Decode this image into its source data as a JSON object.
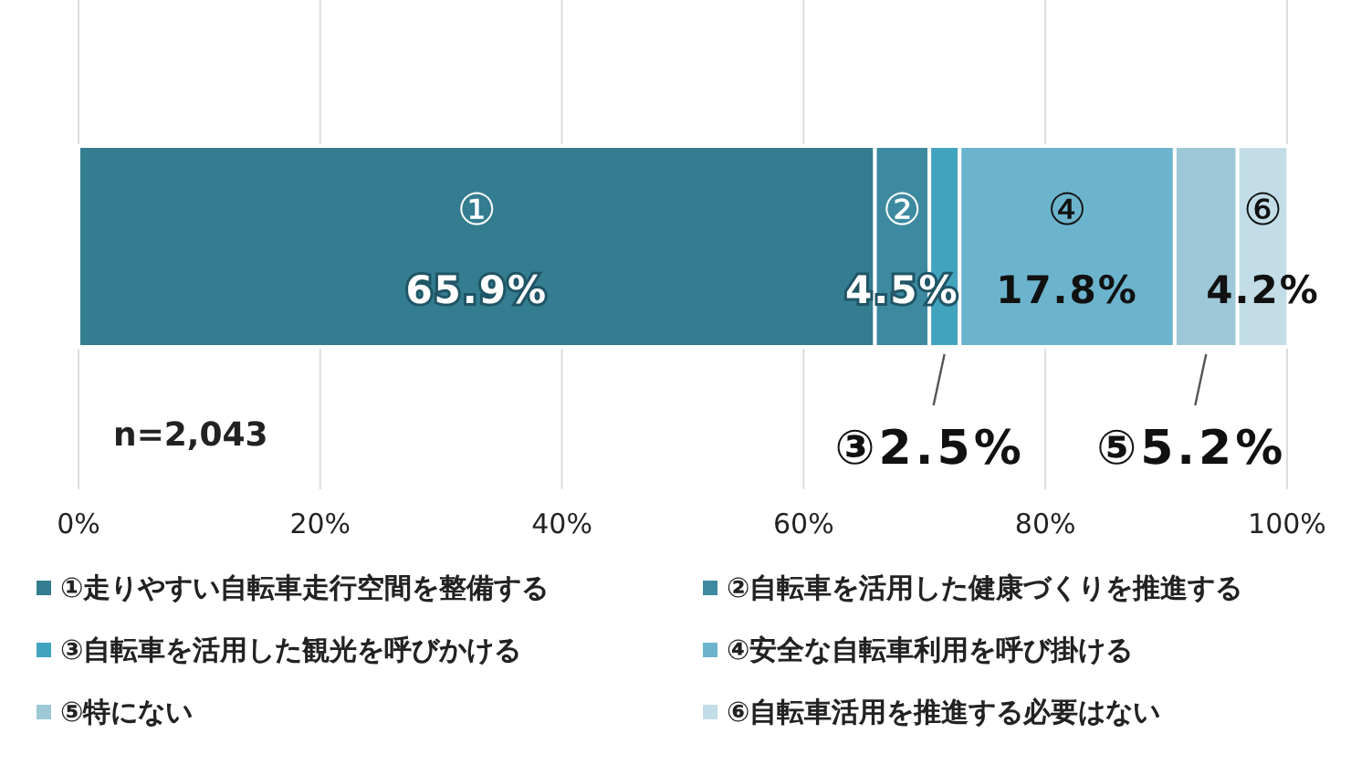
{
  "chart_data": {
    "type": "bar",
    "orientation": "horizontal",
    "stacked": true,
    "categories": [
      null
    ],
    "xlim": [
      0,
      100
    ],
    "xticks": [
      {
        "value": 0,
        "label": "0%"
      },
      {
        "value": 20,
        "label": "20%"
      },
      {
        "value": 40,
        "label": "40%"
      },
      {
        "value": 60,
        "label": "60%"
      },
      {
        "value": 80,
        "label": "80%"
      },
      {
        "value": 100,
        "label": "100%"
      }
    ],
    "grid": "x",
    "legend": "bottom",
    "annotations": [
      "n=2,043"
    ],
    "series": [
      {
        "name": "①走りやすい自転車走行空間を整備する",
        "color": "#347c8f",
        "values": [
          65.9
        ],
        "value_labels": [
          "①\n65.9%"
        ]
      },
      {
        "name": "②自転車を活用した健康づくりを推進する",
        "color": "#3d8aa0",
        "values": [
          4.5
        ],
        "value_labels": [
          "②\n4.5%"
        ]
      },
      {
        "name": "③自転車を活用した観光を呼びかける",
        "color": "#42a3bf",
        "values": [
          2.5
        ],
        "value_labels": [
          "③2.5%"
        ]
      },
      {
        "name": "④安全な自転車利用を呼び掛ける",
        "color": "#6cb4cd",
        "values": [
          17.8
        ],
        "value_labels": [
          "④\n17.8%"
        ]
      },
      {
        "name": "⑤特にない",
        "color": "#9ec8d8",
        "values": [
          5.2
        ],
        "value_labels": [
          "⑤5.2%"
        ]
      },
      {
        "name": "⑥自転車活用を推進する必要はない",
        "color": "#c2dde7",
        "values": [
          4.2
        ],
        "value_labels": [
          "⑥\n4.2%"
        ]
      }
    ]
  }
}
